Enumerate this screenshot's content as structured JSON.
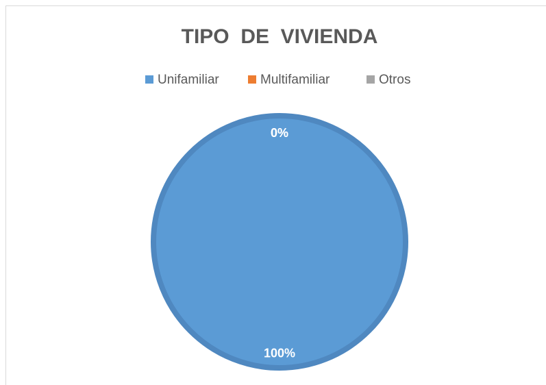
{
  "chart_data": {
    "type": "pie",
    "title": "TIPO  DE  VIVIENDA",
    "categories": [
      "Unifamiliar",
      "Multifamiliar",
      "Otros"
    ],
    "values": [
      100,
      0,
      0
    ],
    "value_labels": [
      "100%",
      "0%",
      "0%"
    ],
    "colors": [
      "#5b9bd5",
      "#ed7d31",
      "#a5a5a5"
    ],
    "legend": "top"
  }
}
